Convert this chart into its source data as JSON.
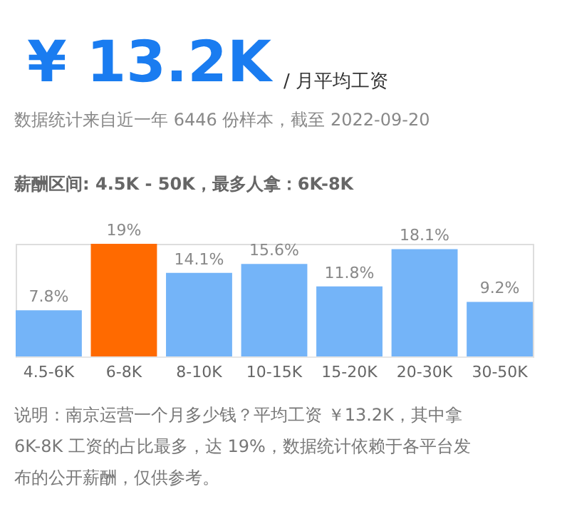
{
  "chart_data": {
    "type": "bar",
    "title": "¥ 13.2K",
    "subtitle": "/ 月平均工资",
    "annotations": [
      "数据统计来自近一年 6446 份样本，截至 2022-09-20",
      "薪酬区间: 4.5K - 50K，最多人拿：6K-8K",
      "说明：南京运营一个月多少钱？平均工资 ￥13.2K，其中拿",
      "6K-8K 工资的占比最多，达 19%，数据统计依赖于各平台发",
      "布的公开薪酬，仅供参考。"
    ],
    "categories": [
      "4.5-6K",
      "6-8K",
      "8-10K",
      "10-15K",
      "15-20K",
      "20-30K",
      "30-50K"
    ],
    "values": [
      7.8,
      19,
      14.1,
      15.6,
      11.8,
      18.1,
      9.2
    ],
    "value_labels": [
      "7.8%",
      "19%",
      "14.1%",
      "15.6%",
      "11.8%",
      "18.1%",
      "9.2%"
    ],
    "colors": [
      "#74b4f8",
      "#ff6a00",
      "#74b4f8",
      "#74b4f8",
      "#74b4f8",
      "#74b4f8",
      "#74b4f8"
    ]
  }
}
